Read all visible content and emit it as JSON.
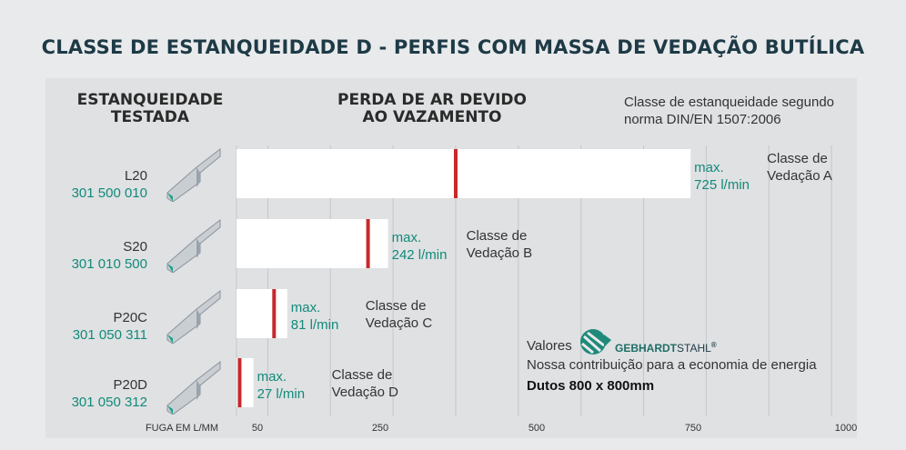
{
  "title": "CLASSE DE ESTANQUEIDADE D - PERFIS COM MASSA DE VEDAÇÃO BUTÍLICA",
  "header_left": [
    "ESTANQUEIDADE",
    "TESTADA"
  ],
  "header_mid": [
    "PERDA DE AR DEVIDO",
    "AO VAZAMENTO"
  ],
  "note": [
    "Classe de estanqueidade segundo",
    "norma DIN/EN 1507:2006"
  ],
  "rows": [
    {
      "name": "L20",
      "code": "301 500 010"
    },
    {
      "name": "S20",
      "code": "301 010 500"
    },
    {
      "name": "P20C",
      "code": "301 050 311"
    },
    {
      "name": "P20D",
      "code": "301 050 312"
    }
  ],
  "footer": {
    "valores": "Valores",
    "brand_a": "GEBHARDT",
    "brand_b": "STAHL",
    "brand_reg": "®",
    "contrib": "Nossa contribuição para a economia de energia",
    "dutos": "Dutos 800 x 800mm"
  },
  "colors": {
    "accent": "#128a7a",
    "marker": "#c8282c",
    "title": "#1d3a46",
    "bar": "#ffffff"
  },
  "chart_data": {
    "type": "bar",
    "orientation": "horizontal",
    "xlabel": "FUGA EM L/MM",
    "ticks": [
      50,
      250,
      500,
      750,
      1000
    ],
    "categories": [
      "L20",
      "S20",
      "P20C",
      "P20D"
    ],
    "values": [
      725,
      242,
      81,
      27
    ],
    "markers": [
      350,
      210,
      60,
      5
    ],
    "value_labels": [
      [
        "max.",
        "725 l/min"
      ],
      [
        "max.",
        "242 l/min"
      ],
      [
        "max.",
        "81 l/min"
      ],
      [
        "max.",
        "27 l/min"
      ]
    ],
    "class_labels": [
      [
        "Classe de",
        "Vedação A"
      ],
      [
        "Classe de",
        "Vedação B"
      ],
      [
        "Classe de",
        "Vedação C"
      ],
      [
        "Classe de",
        "Vedação D"
      ]
    ]
  }
}
